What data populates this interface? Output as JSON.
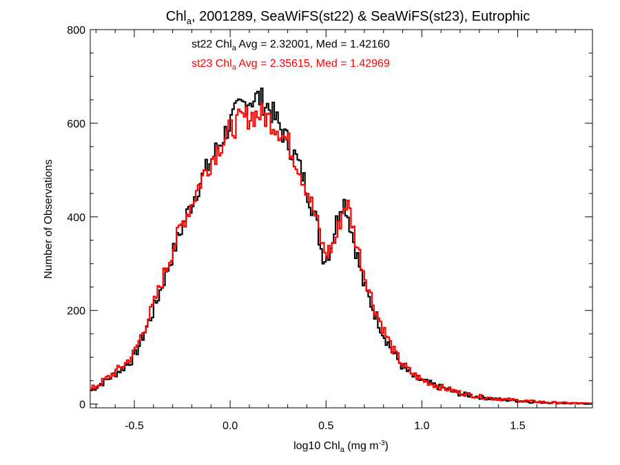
{
  "chart_data": {
    "type": "line",
    "style": "histogram-step",
    "title": {
      "base": "Chl",
      "sub": "a",
      "rest": ", 2001289, SeaWiFS(st22) & SeaWiFS(st23), Eutrophic"
    },
    "xlabel": {
      "pre": "log10 Chl",
      "sub": "a",
      "mid": " (mg m",
      "sup": "-3",
      "post": ")"
    },
    "ylabel": "Number of Observations",
    "xlim": [
      -0.73,
      1.89
    ],
    "ylim": [
      -8,
      800
    ],
    "xticks": [
      -0.5,
      0.0,
      0.5,
      1.0,
      1.5
    ],
    "xtick_labels": [
      "-0.5",
      "0.0",
      "0.5",
      "1.0",
      "1.5"
    ],
    "yticks": [
      0,
      200,
      400,
      600,
      800
    ],
    "ytick_labels": [
      "0",
      "200",
      "400",
      "600",
      "800"
    ],
    "x_minor_step": 0.1,
    "y_minor_step": 50,
    "grid": false,
    "annotations": [
      {
        "pre": "st22 Chl",
        "sub": "a",
        "post": " Avg = 2.32001, Med = 1.42160",
        "color": "#000000"
      },
      {
        "pre": "st23 Chl",
        "sub": "a",
        "post": " Avg = 2.35615, Med = 1.42969",
        "color": "#ff0000"
      }
    ],
    "bin_width": 0.01,
    "series": [
      {
        "color": "#000000",
        "anchors": [
          [
            -0.73,
            28
          ],
          [
            -0.65,
            50
          ],
          [
            -0.55,
            80
          ],
          [
            -0.5,
            100
          ],
          [
            -0.45,
            150
          ],
          [
            -0.4,
            200
          ],
          [
            -0.35,
            260
          ],
          [
            -0.3,
            320
          ],
          [
            -0.25,
            380
          ],
          [
            -0.2,
            430
          ],
          [
            -0.15,
            480
          ],
          [
            -0.1,
            520
          ],
          [
            -0.05,
            560
          ],
          [
            0.0,
            600
          ],
          [
            0.05,
            635
          ],
          [
            0.1,
            650
          ],
          [
            0.15,
            655
          ],
          [
            0.2,
            635
          ],
          [
            0.25,
            600
          ],
          [
            0.3,
            560
          ],
          [
            0.35,
            520
          ],
          [
            0.4,
            460
          ],
          [
            0.45,
            390
          ],
          [
            0.48,
            320
          ],
          [
            0.5,
            310
          ],
          [
            0.52,
            330
          ],
          [
            0.55,
            380
          ],
          [
            0.58,
            435
          ],
          [
            0.6,
            430
          ],
          [
            0.65,
            340
          ],
          [
            0.7,
            250
          ],
          [
            0.75,
            200
          ],
          [
            0.8,
            150
          ],
          [
            0.85,
            110
          ],
          [
            0.9,
            80
          ],
          [
            0.95,
            60
          ],
          [
            1.0,
            50
          ],
          [
            1.1,
            35
          ],
          [
            1.2,
            22
          ],
          [
            1.3,
            15
          ],
          [
            1.4,
            10
          ],
          [
            1.5,
            7
          ],
          [
            1.6,
            4
          ],
          [
            1.7,
            3
          ],
          [
            1.8,
            1
          ],
          [
            1.89,
            1
          ]
        ]
      },
      {
        "color": "#ff0000",
        "anchors": [
          [
            -0.73,
            30
          ],
          [
            -0.65,
            52
          ],
          [
            -0.55,
            85
          ],
          [
            -0.5,
            110
          ],
          [
            -0.45,
            160
          ],
          [
            -0.4,
            210
          ],
          [
            -0.35,
            270
          ],
          [
            -0.3,
            330
          ],
          [
            -0.25,
            385
          ],
          [
            -0.2,
            430
          ],
          [
            -0.15,
            480
          ],
          [
            -0.1,
            520
          ],
          [
            -0.05,
            555
          ],
          [
            0.0,
            585
          ],
          [
            0.05,
            605
          ],
          [
            0.1,
            615
          ],
          [
            0.15,
            620
          ],
          [
            0.2,
            610
          ],
          [
            0.25,
            590
          ],
          [
            0.3,
            560
          ],
          [
            0.35,
            515
          ],
          [
            0.4,
            460
          ],
          [
            0.45,
            395
          ],
          [
            0.48,
            340
          ],
          [
            0.5,
            320
          ],
          [
            0.52,
            330
          ],
          [
            0.55,
            350
          ],
          [
            0.58,
            400
          ],
          [
            0.6,
            430
          ],
          [
            0.62,
            420
          ],
          [
            0.65,
            360
          ],
          [
            0.7,
            280
          ],
          [
            0.75,
            210
          ],
          [
            0.8,
            160
          ],
          [
            0.85,
            115
          ],
          [
            0.9,
            85
          ],
          [
            0.95,
            65
          ],
          [
            1.0,
            52
          ],
          [
            1.1,
            36
          ],
          [
            1.2,
            24
          ],
          [
            1.3,
            16
          ],
          [
            1.4,
            11
          ],
          [
            1.5,
            8
          ],
          [
            1.6,
            5
          ],
          [
            1.7,
            3
          ],
          [
            1.8,
            2
          ],
          [
            1.89,
            1
          ]
        ]
      }
    ]
  }
}
